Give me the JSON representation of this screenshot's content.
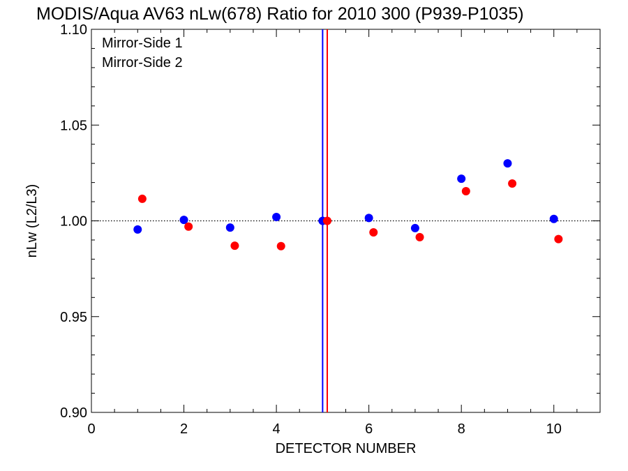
{
  "chart_data": {
    "type": "scatter",
    "title": "MODIS/Aqua AV63 nLw(678) Ratio for 2010 300 (P939-P1035)",
    "xlabel": "DETECTOR NUMBER",
    "ylabel": "nLw (L2/L3)",
    "xlim": [
      0,
      11
    ],
    "ylim": [
      0.9,
      1.1
    ],
    "x_ticks": [
      "0",
      "2",
      "4",
      "6",
      "8",
      "10"
    ],
    "y_ticks": [
      "0.90",
      "0.95",
      "1.00",
      "1.05",
      "1.10"
    ],
    "reference_line_y": 1.0,
    "vertical_lines": [
      {
        "x": 5.0,
        "color": "#0000ff"
      },
      {
        "x": 5.1,
        "color": "#ff0000"
      }
    ],
    "legend_position": "top-left",
    "series": [
      {
        "name": "Mirror-Side 1",
        "color": "#0000ff",
        "x": [
          1,
          2,
          3,
          4,
          5,
          6,
          7,
          8,
          9,
          10
        ],
        "y": [
          0.9955,
          1.0005,
          0.9965,
          1.002,
          1.0,
          1.0015,
          0.9962,
          1.022,
          1.03,
          1.001
        ]
      },
      {
        "name": "Mirror-Side 2",
        "color": "#ff0000",
        "x": [
          1.1,
          2.1,
          3.1,
          4.1,
          5.1,
          6.1,
          7.1,
          8.1,
          9.1,
          10.1
        ],
        "y": [
          1.0115,
          0.997,
          0.987,
          0.9868,
          1.0,
          0.994,
          0.9915,
          1.0155,
          1.0195,
          0.9905
        ]
      }
    ]
  }
}
